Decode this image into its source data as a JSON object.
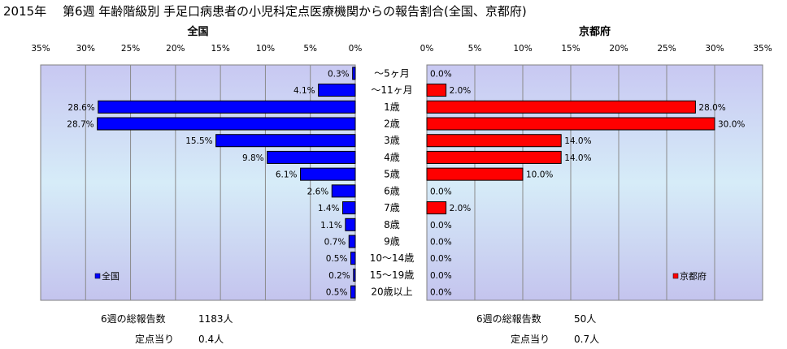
{
  "title": "2015年　 第6週 年齢階級別 手足口病患者の小児科定点医療機関からの報告割合(全国、京都府)",
  "chart_data": [
    {
      "type": "bar",
      "orientation": "horizontal",
      "direction": "right-to-left",
      "title": "全国",
      "categories": [
        "～5ヶ月",
        "～11ヶ月",
        "1歳",
        "2歳",
        "3歳",
        "4歳",
        "5歳",
        "6歳",
        "7歳",
        "8歳",
        "9歳",
        "10～14歳",
        "15～19歳",
        "20歳以上"
      ],
      "series": [
        {
          "name": "全国",
          "values": [
            0.3,
            4.1,
            28.6,
            28.7,
            15.5,
            9.8,
            6.1,
            2.6,
            1.4,
            1.1,
            0.7,
            0.5,
            0.2,
            0.5
          ],
          "color": "#0000ff"
        }
      ],
      "data_labels": [
        "0.3%",
        "4.1%",
        "28.6%",
        "28.7%",
        "15.5%",
        "9.8%",
        "6.1%",
        "2.6%",
        "1.4%",
        "1.1%",
        "0.7%",
        "0.5%",
        "0.2%",
        "0.5%"
      ],
      "xlim": [
        0,
        35
      ],
      "ticks": [
        "35%",
        "30%",
        "25%",
        "20%",
        "15%",
        "10%",
        "5%",
        "0%"
      ],
      "grid": true,
      "legend_position": "bottom-left"
    },
    {
      "type": "bar",
      "orientation": "horizontal",
      "direction": "left-to-right",
      "title": "京都府",
      "categories": [
        "～5ヶ月",
        "～11ヶ月",
        "1歳",
        "2歳",
        "3歳",
        "4歳",
        "5歳",
        "6歳",
        "7歳",
        "8歳",
        "9歳",
        "10～14歳",
        "15～19歳",
        "20歳以上"
      ],
      "series": [
        {
          "name": "京都府",
          "values": [
            0,
            2,
            28,
            30,
            14,
            14,
            10,
            0,
            2,
            0,
            0,
            0,
            0,
            0
          ],
          "color": "#ff0000"
        }
      ],
      "data_labels": [
        "0.0%",
        "2.0%",
        "28.0%",
        "30.0%",
        "14.0%",
        "14.0%",
        "10.0%",
        "0.0%",
        "2.0%",
        "0.0%",
        "0.0%",
        "0.0%",
        "0.0%",
        "0.0%"
      ],
      "xlim": [
        0,
        35
      ],
      "ticks": [
        "0%",
        "5%",
        "10%",
        "15%",
        "20%",
        "25%",
        "30%",
        "35%"
      ],
      "grid": true,
      "legend_position": "bottom-right"
    }
  ],
  "footer": {
    "national_total_label": "6週の総報告数",
    "national_total_value": "1183人",
    "national_per_label": "定点当り",
    "national_per_value": "0.4人",
    "kyoto_total_label": "6週の総報告数",
    "kyoto_total_value": "50人",
    "kyoto_per_label": "定点当り",
    "kyoto_per_value": "0.7人"
  }
}
